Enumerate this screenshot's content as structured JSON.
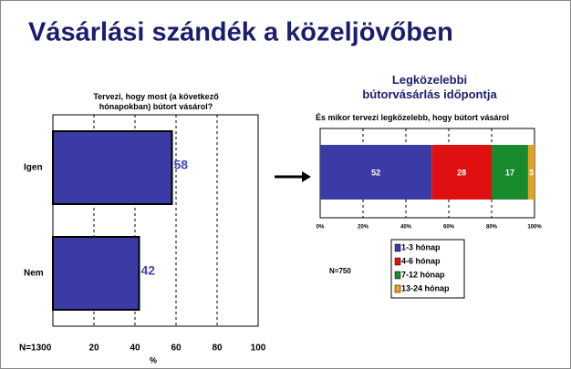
{
  "title": "Vásárlási szándék a közeljövőben",
  "chart_data": [
    {
      "type": "hbar",
      "subtitle": "Tervezi, hogy most (a következő hónapokban) bútort vásárol?",
      "categories": [
        "Igen",
        "Nem"
      ],
      "values": [
        58,
        42
      ],
      "color": "#3b3ba6",
      "xlim": [
        0,
        100
      ],
      "xticks": [
        20,
        40,
        60,
        80,
        100
      ],
      "xlabel": "%",
      "grid": true,
      "note": "N=1300"
    },
    {
      "type": "stacked_hbar",
      "title": "Legközelebbi bútorvásárlás időpontja",
      "subtitle": "És mikor tervezi legközelebb, hogy bútort vásárol",
      "series": [
        {
          "name": "1-3 hónap",
          "color": "#3b3ba6",
          "values": [
            52
          ]
        },
        {
          "name": "4-6 hónap",
          "color": "#e01010",
          "values": [
            28
          ]
        },
        {
          "name": "7-12 hónap",
          "color": "#1a8a2e",
          "values": [
            17
          ]
        },
        {
          "name": "13-24 hónap",
          "color": "#e8a020",
          "values": [
            3
          ]
        }
      ],
      "xlim": [
        0,
        100
      ],
      "xticks": [
        {
          "value": 0,
          "label": "0%"
        },
        {
          "value": 20,
          "label": "20%"
        },
        {
          "value": 40,
          "label": "40%"
        },
        {
          "value": 60,
          "label": "60%"
        },
        {
          "value": 80,
          "label": "80%"
        },
        {
          "value": 100,
          "label": "100%"
        }
      ],
      "grid": true,
      "note": "N=750"
    }
  ]
}
